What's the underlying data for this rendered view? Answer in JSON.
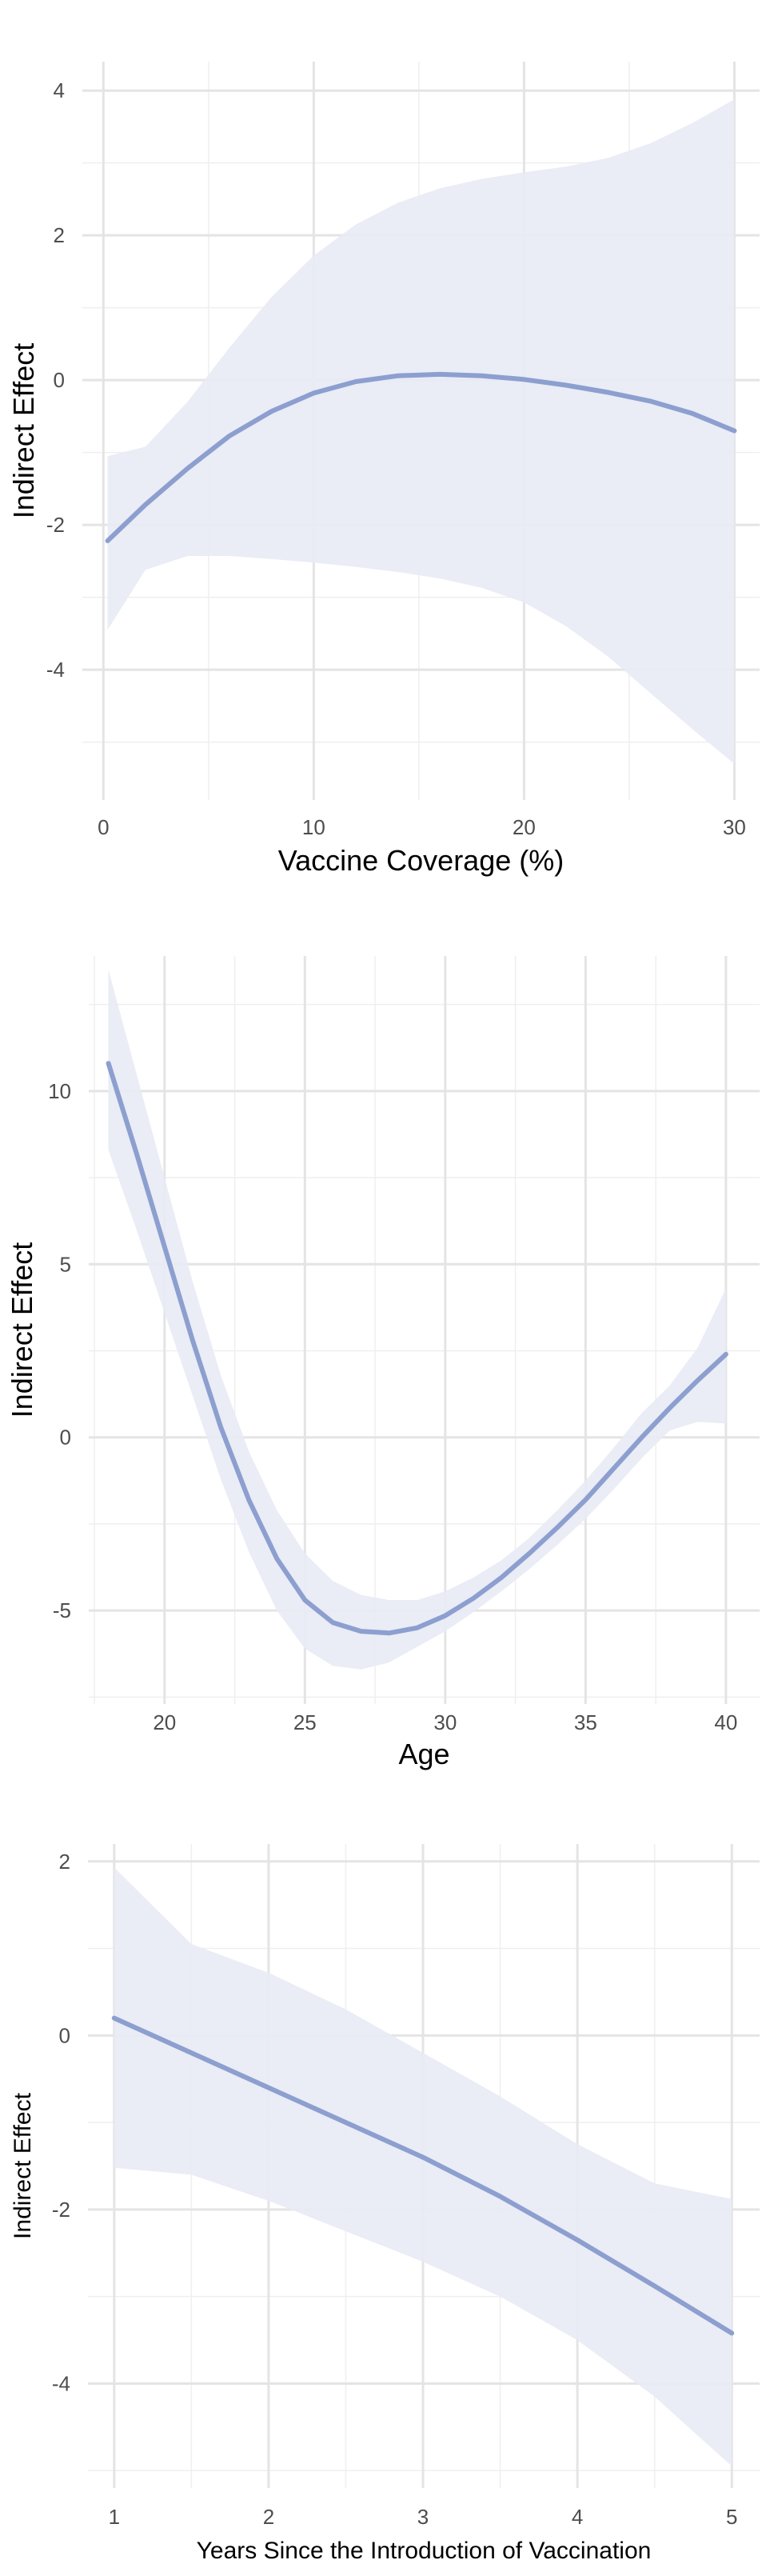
{
  "chart_data": [
    {
      "type": "line",
      "xlabel": "Vaccine Coverage (%)",
      "ylabel": "Indirect Effect",
      "xlim": [
        -1,
        31.2
      ],
      "ylim": [
        -5.8,
        4.4
      ],
      "x_ticks": [
        0,
        10,
        20,
        30
      ],
      "y_ticks": [
        -4,
        -2,
        0,
        2,
        4
      ],
      "x_tick_labels": [
        "0",
        "10",
        "20",
        "30"
      ],
      "y_tick_labels": [
        "-4",
        "-2",
        "0",
        "2",
        "4"
      ],
      "grid": true,
      "line_color": "#8c9fcf",
      "band_color": "#e8eaf5",
      "series": [
        {
          "x": [
            0.2,
            2,
            4,
            6,
            8,
            10,
            12,
            14,
            16,
            18,
            20,
            22,
            24,
            26,
            28,
            30
          ],
          "y": [
            -2.22,
            -1.72,
            -1.22,
            -0.77,
            -0.43,
            -0.18,
            -0.02,
            0.06,
            0.08,
            0.06,
            0.01,
            -0.07,
            -0.17,
            -0.29,
            -0.46,
            -0.7
          ],
          "lower": [
            -3.45,
            -2.62,
            -2.43,
            -2.43,
            -2.47,
            -2.52,
            -2.58,
            -2.65,
            -2.74,
            -2.87,
            -3.07,
            -3.4,
            -3.82,
            -4.32,
            -4.82,
            -5.3
          ],
          "upper": [
            -1.05,
            -0.92,
            -0.3,
            0.45,
            1.15,
            1.72,
            2.15,
            2.45,
            2.65,
            2.78,
            2.87,
            2.95,
            3.07,
            3.27,
            3.55,
            3.88
          ]
        }
      ]
    },
    {
      "type": "line",
      "xlabel": "Age",
      "ylabel": "Indirect Effect",
      "xlim": [
        17.3,
        41.2
      ],
      "ylim": [
        -7.7,
        13.9
      ],
      "x_ticks": [
        20,
        25,
        30,
        35,
        40
      ],
      "y_ticks": [
        -5,
        0,
        5,
        10
      ],
      "x_tick_labels": [
        "20",
        "25",
        "30",
        "35",
        "40"
      ],
      "y_tick_labels": [
        "-5",
        "0",
        "5",
        "10"
      ],
      "grid": true,
      "line_color": "#8c9fcf",
      "band_color": "#e8eaf5",
      "series": [
        {
          "x": [
            18,
            19,
            20,
            21,
            22,
            23,
            24,
            25,
            26,
            27,
            28,
            29,
            30,
            31,
            32,
            33,
            34,
            35,
            36,
            37,
            38,
            39,
            40
          ],
          "y": [
            10.8,
            8.2,
            5.5,
            2.8,
            0.3,
            -1.8,
            -3.5,
            -4.7,
            -5.35,
            -5.6,
            -5.65,
            -5.5,
            -5.15,
            -4.65,
            -4.05,
            -3.35,
            -2.6,
            -1.8,
            -0.9,
            0.0,
            0.85,
            1.65,
            2.4
          ],
          "lower": [
            8.3,
            6.0,
            3.6,
            1.2,
            -1.2,
            -3.3,
            -5.0,
            -6.1,
            -6.6,
            -6.7,
            -6.5,
            -6.05,
            -5.6,
            -5.05,
            -4.45,
            -3.8,
            -3.1,
            -2.35,
            -1.5,
            -0.6,
            0.2,
            0.45,
            0.4
          ],
          "upper": [
            13.5,
            10.5,
            7.5,
            4.5,
            1.8,
            -0.4,
            -2.1,
            -3.35,
            -4.15,
            -4.55,
            -4.7,
            -4.7,
            -4.45,
            -4.05,
            -3.55,
            -2.9,
            -2.1,
            -1.25,
            -0.3,
            0.7,
            1.5,
            2.6,
            4.3
          ]
        }
      ]
    },
    {
      "type": "line",
      "xlabel": "Years Since the Introduction of Vaccination",
      "ylabel": "Indirect Effect",
      "xlim": [
        0.83,
        5.18
      ],
      "ylim": [
        -5.2,
        2.2
      ],
      "x_ticks": [
        1,
        2,
        3,
        4,
        5
      ],
      "y_ticks": [
        -4,
        -2,
        0,
        2
      ],
      "x_tick_labels": [
        "1",
        "2",
        "3",
        "4",
        "5"
      ],
      "y_tick_labels": [
        "-4",
        "-2",
        "0",
        "2"
      ],
      "grid": true,
      "line_color": "#8c9fcf",
      "band_color": "#e8eaf5",
      "series": [
        {
          "x": [
            1,
            1.5,
            2,
            2.5,
            3,
            3.5,
            4,
            4.5,
            5
          ],
          "y": [
            0.2,
            -0.2,
            -0.6,
            -1.0,
            -1.4,
            -1.85,
            -2.35,
            -2.88,
            -3.42
          ],
          "lower": [
            -1.52,
            -1.6,
            -1.9,
            -2.25,
            -2.6,
            -3.0,
            -3.5,
            -4.15,
            -4.95
          ],
          "upper": [
            1.93,
            1.05,
            0.72,
            0.3,
            -0.2,
            -0.7,
            -1.25,
            -1.7,
            -1.88
          ]
        }
      ]
    }
  ]
}
